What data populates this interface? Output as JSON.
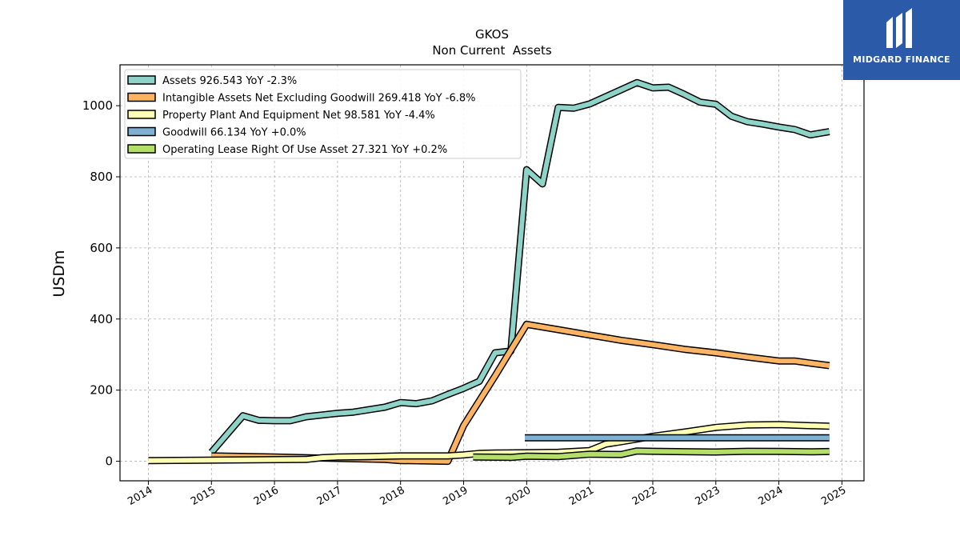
{
  "brand": {
    "name": "MIDGARD FINANCE",
    "bg_color": "#2b5ba8",
    "icon": "midgard-logo-icon"
  },
  "chart_data": {
    "type": "line",
    "title": "GKOS",
    "subtitle": "Non Current  Assets",
    "ylabel": "USDm",
    "xlabel": "",
    "xlim": [
      2013.55,
      2025.35
    ],
    "ylim": [
      -55,
      1115
    ],
    "x_ticks": [
      2014,
      2015,
      2016,
      2017,
      2018,
      2019,
      2020,
      2021,
      2022,
      2023,
      2024,
      2025
    ],
    "y_ticks": [
      0,
      200,
      400,
      600,
      800,
      1000
    ],
    "grid": true,
    "legend_position": "top-left",
    "series": [
      {
        "name": "Assets",
        "legend": "Assets  926.543 YoY -2.3%",
        "color": "#8dd3c7",
        "points": [
          [
            2015.0,
            25
          ],
          [
            2015.5,
            128
          ],
          [
            2015.75,
            115
          ],
          [
            2016.0,
            114
          ],
          [
            2016.25,
            114
          ],
          [
            2016.5,
            125
          ],
          [
            2016.75,
            130
          ],
          [
            2017.0,
            135
          ],
          [
            2017.25,
            138
          ],
          [
            2017.5,
            145
          ],
          [
            2017.75,
            152
          ],
          [
            2018.0,
            165
          ],
          [
            2018.25,
            162
          ],
          [
            2018.5,
            170
          ],
          [
            2018.75,
            188
          ],
          [
            2019.0,
            205
          ],
          [
            2019.25,
            225
          ],
          [
            2019.5,
            305
          ],
          [
            2019.75,
            310
          ],
          [
            2020.0,
            820
          ],
          [
            2020.25,
            780
          ],
          [
            2020.5,
            995
          ],
          [
            2020.75,
            993
          ],
          [
            2021.0,
            1005
          ],
          [
            2021.25,
            1025
          ],
          [
            2021.5,
            1045
          ],
          [
            2021.75,
            1065
          ],
          [
            2022.0,
            1050
          ],
          [
            2022.25,
            1052
          ],
          [
            2022.5,
            1032
          ],
          [
            2022.75,
            1010
          ],
          [
            2023.0,
            1004
          ],
          [
            2023.25,
            970
          ],
          [
            2023.5,
            955
          ],
          [
            2023.75,
            948
          ],
          [
            2024.0,
            940
          ],
          [
            2024.25,
            933
          ],
          [
            2024.5,
            918
          ],
          [
            2024.8,
            927
          ]
        ]
      },
      {
        "name": "Intangible Assets Net Excluding Goodwill",
        "legend": "Intangible Assets Net Excluding Goodwill  269.418 YoY -6.8%",
        "color": "#fdb462",
        "points": [
          [
            2015.0,
            15
          ],
          [
            2016.0,
            12
          ],
          [
            2017.0,
            8
          ],
          [
            2017.75,
            5
          ],
          [
            2018.0,
            2
          ],
          [
            2018.75,
            0
          ],
          [
            2019.0,
            100
          ],
          [
            2019.5,
            240
          ],
          [
            2020.0,
            385
          ],
          [
            2020.5,
            370
          ],
          [
            2021.0,
            355
          ],
          [
            2021.5,
            340
          ],
          [
            2022.0,
            328
          ],
          [
            2022.5,
            315
          ],
          [
            2023.0,
            305
          ],
          [
            2023.5,
            293
          ],
          [
            2024.0,
            282
          ],
          [
            2024.25,
            282
          ],
          [
            2024.5,
            276
          ],
          [
            2024.8,
            269
          ]
        ]
      },
      {
        "name": "Property Plant And Equipment Net",
        "legend": "Property Plant And Equipment Net  98.581 YoY -4.4%",
        "color": "#ffffb3",
        "points": [
          [
            2014.0,
            2
          ],
          [
            2016.5,
            5
          ],
          [
            2016.75,
            10
          ],
          [
            2017.0,
            12
          ],
          [
            2017.5,
            13
          ],
          [
            2018.0,
            15
          ],
          [
            2018.75,
            15
          ],
          [
            2019.0,
            18
          ],
          [
            2019.25,
            22
          ],
          [
            2019.5,
            23
          ],
          [
            2020.0,
            24
          ],
          [
            2020.5,
            25
          ],
          [
            2021.0,
            30
          ],
          [
            2021.25,
            48
          ],
          [
            2021.5,
            55
          ],
          [
            2022.0,
            70
          ],
          [
            2022.5,
            82
          ],
          [
            2023.0,
            95
          ],
          [
            2023.5,
            102
          ],
          [
            2024.0,
            103
          ],
          [
            2024.5,
            100
          ],
          [
            2024.8,
            98.6
          ]
        ]
      },
      {
        "name": "Goodwill",
        "legend": "Goodwill  66.134 YoY +0.0%",
        "color": "#80b1d3",
        "points": [
          [
            2019.97,
            66.1
          ],
          [
            2024.8,
            66.1
          ]
        ]
      },
      {
        "name": "Operating Lease Right Of Use Asset",
        "legend": "Operating Lease Right Of Use Asset  27.321 YoY +0.2%",
        "color": "#b3de69",
        "points": [
          [
            2019.15,
            12
          ],
          [
            2019.75,
            11
          ],
          [
            2020.0,
            14
          ],
          [
            2020.5,
            13
          ],
          [
            2021.0,
            20
          ],
          [
            2021.5,
            19
          ],
          [
            2021.75,
            29
          ],
          [
            2022.0,
            28
          ],
          [
            2022.5,
            27
          ],
          [
            2023.0,
            26
          ],
          [
            2023.5,
            28
          ],
          [
            2024.0,
            27.5
          ],
          [
            2024.5,
            26.5
          ],
          [
            2024.8,
            27.3
          ]
        ]
      }
    ]
  }
}
